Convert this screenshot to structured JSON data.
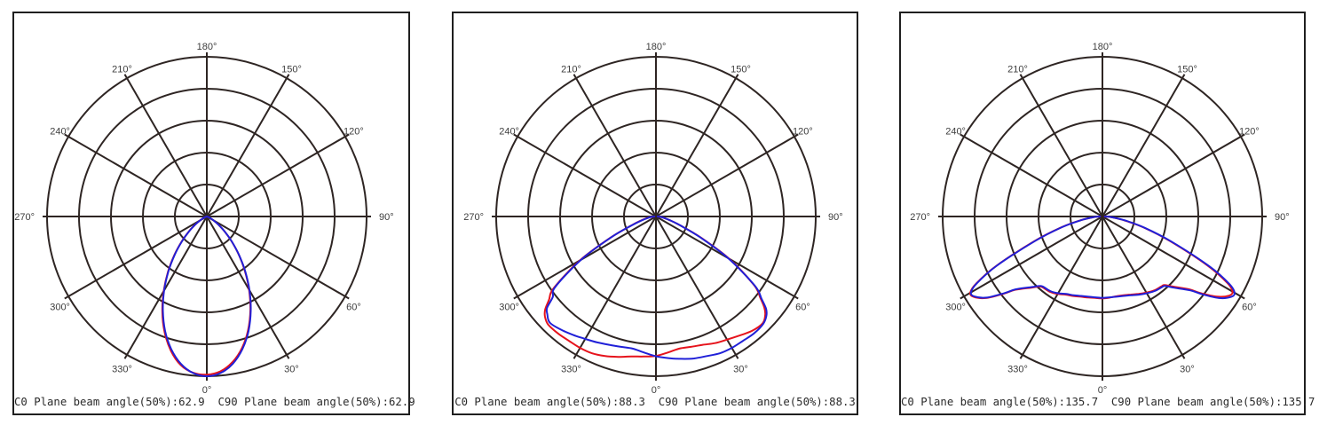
{
  "page": {
    "background_color": "#ffffff"
  },
  "polar_grid": {
    "rings": 5,
    "spoke_step_deg": 30,
    "grid_color": "#2e2523",
    "label_color": "#3d3d3d",
    "angle_labels": [
      "0°",
      "30°",
      "60°",
      "90°",
      "120°",
      "150°",
      "180°",
      "210°",
      "240°",
      "270°",
      "300°",
      "330°"
    ]
  },
  "chart_data": [
    {
      "type": "polar-line",
      "caption": "C0 Plane beam angle(50%):62.9  C90 Plane beam angle(50%):62.9",
      "beam_angle_50_c0": 62.9,
      "beam_angle_50_c90": 62.9,
      "angle_labels": [
        "0°",
        "30°",
        "60°",
        "90°",
        "120°",
        "150°",
        "180°",
        "210°",
        "240°",
        "270°",
        "300°",
        "330°"
      ],
      "radial_axis": {
        "rings": 5,
        "r_max": 1.0,
        "orientation": "0° at bottom, angles increase counterclockwise"
      },
      "series": [
        {
          "name": "C0 Plane",
          "color": "#e6131c",
          "points": [
            [
              -90,
              0
            ],
            [
              -85,
              0.001
            ],
            [
              -80,
              0.002
            ],
            [
              -75,
              0.004
            ],
            [
              -70,
              0.009
            ],
            [
              -65,
              0.023
            ],
            [
              -60,
              0.05
            ],
            [
              -55,
              0.09
            ],
            [
              -50,
              0.148
            ],
            [
              -45,
              0.224
            ],
            [
              -40,
              0.317
            ],
            [
              -35,
              0.424
            ],
            [
              -30,
              0.54
            ],
            [
              -25,
              0.659
            ],
            [
              -20,
              0.772
            ],
            [
              -15,
              0.87
            ],
            [
              -10,
              0.944
            ],
            [
              -5,
              0.982
            ],
            [
              0,
              0.99
            ],
            [
              5,
              0.973
            ],
            [
              10,
              0.926
            ],
            [
              15,
              0.852
            ],
            [
              20,
              0.756
            ],
            [
              25,
              0.645
            ],
            [
              30,
              0.529
            ],
            [
              35,
              0.415
            ],
            [
              40,
              0.31
            ],
            [
              45,
              0.219
            ],
            [
              50,
              0.144
            ],
            [
              55,
              0.088
            ],
            [
              60,
              0.048
            ],
            [
              65,
              0.022
            ],
            [
              70,
              0.009
            ],
            [
              75,
              0.004
            ],
            [
              80,
              0.002
            ],
            [
              85,
              0.001
            ],
            [
              90,
              0
            ]
          ]
        },
        {
          "name": "C90 Plane",
          "color": "#2020d8",
          "points": [
            [
              -90,
              0
            ],
            [
              -85,
              0.001
            ],
            [
              -80,
              0.002
            ],
            [
              -75,
              0.004
            ],
            [
              -70,
              0.009
            ],
            [
              -65,
              0.023
            ],
            [
              -60,
              0.049
            ],
            [
              -55,
              0.089
            ],
            [
              -50,
              0.146
            ],
            [
              -45,
              0.221
            ],
            [
              -40,
              0.313
            ],
            [
              -35,
              0.419
            ],
            [
              -30,
              0.534
            ],
            [
              -25,
              0.651
            ],
            [
              -20,
              0.763
            ],
            [
              -15,
              0.86
            ],
            [
              -10,
              0.936
            ],
            [
              -5,
              0.984
            ],
            [
              0,
              1.0
            ],
            [
              5,
              0.984
            ],
            [
              10,
              0.936
            ],
            [
              15,
              0.86
            ],
            [
              20,
              0.763
            ],
            [
              25,
              0.651
            ],
            [
              30,
              0.534
            ],
            [
              35,
              0.419
            ],
            [
              40,
              0.313
            ],
            [
              45,
              0.221
            ],
            [
              50,
              0.146
            ],
            [
              55,
              0.089
            ],
            [
              60,
              0.049
            ],
            [
              65,
              0.023
            ],
            [
              70,
              0.009
            ],
            [
              75,
              0.004
            ],
            [
              80,
              0.002
            ],
            [
              85,
              0.001
            ],
            [
              90,
              0
            ]
          ]
        }
      ]
    },
    {
      "type": "polar-line",
      "caption": "C0 Plane beam angle(50%):88.3  C90 Plane beam angle(50%):88.3",
      "beam_angle_50_c0": 88.3,
      "beam_angle_50_c90": 88.3,
      "angle_labels": [
        "0°",
        "30°",
        "60°",
        "90°",
        "120°",
        "150°",
        "180°",
        "210°",
        "240°",
        "270°",
        "300°",
        "330°"
      ],
      "radial_axis": {
        "rings": 5,
        "r_max": 1.0,
        "orientation": "0° at bottom, angles increase counterclockwise"
      },
      "series": [
        {
          "name": "C0 Plane",
          "color": "#e6131c",
          "points": [
            [
              -90,
              0.01
            ],
            [
              -85,
              0.03
            ],
            [
              -80,
              0.055
            ],
            [
              -75,
              0.095
            ],
            [
              -70,
              0.165
            ],
            [
              -65,
              0.315
            ],
            [
              -60,
              0.55
            ],
            [
              -55,
              0.78
            ],
            [
              -52,
              0.85
            ],
            [
              -50,
              0.905
            ],
            [
              -48,
              0.935
            ],
            [
              -45,
              0.955
            ],
            [
              -40,
              0.955
            ],
            [
              -35,
              0.95
            ],
            [
              -30,
              0.95
            ],
            [
              -25,
              0.945
            ],
            [
              -20,
              0.93
            ],
            [
              -15,
              0.91
            ],
            [
              -10,
              0.89
            ],
            [
              -5,
              0.88
            ],
            [
              0,
              0.873
            ],
            [
              5,
              0.855
            ],
            [
              10,
              0.84
            ],
            [
              15,
              0.845
            ],
            [
              20,
              0.855
            ],
            [
              25,
              0.875
            ],
            [
              30,
              0.89
            ],
            [
              35,
              0.91
            ],
            [
              40,
              0.935
            ],
            [
              45,
              0.945
            ],
            [
              48,
              0.92
            ],
            [
              50,
              0.885
            ],
            [
              52,
              0.83
            ],
            [
              55,
              0.75
            ],
            [
              60,
              0.53
            ],
            [
              65,
              0.305
            ],
            [
              70,
              0.16
            ],
            [
              75,
              0.09
            ],
            [
              80,
              0.05
            ],
            [
              85,
              0.03
            ],
            [
              90,
              0.01
            ]
          ]
        },
        {
          "name": "C90 Plane",
          "color": "#2020d8",
          "points": [
            [
              -90,
              0.01
            ],
            [
              -85,
              0.03
            ],
            [
              -80,
              0.05
            ],
            [
              -75,
              0.09
            ],
            [
              -70,
              0.16
            ],
            [
              -65,
              0.31
            ],
            [
              -60,
              0.54
            ],
            [
              -55,
              0.77
            ],
            [
              -52,
              0.82
            ],
            [
              -50,
              0.89
            ],
            [
              -48,
              0.915
            ],
            [
              -45,
              0.94
            ],
            [
              -40,
              0.925
            ],
            [
              -35,
              0.905
            ],
            [
              -30,
              0.885
            ],
            [
              -25,
              0.87
            ],
            [
              -20,
              0.855
            ],
            [
              -15,
              0.845
            ],
            [
              -10,
              0.84
            ],
            [
              -5,
              0.855
            ],
            [
              0,
              0.875
            ],
            [
              5,
              0.89
            ],
            [
              10,
              0.905
            ],
            [
              15,
              0.92
            ],
            [
              20,
              0.93
            ],
            [
              25,
              0.945
            ],
            [
              30,
              0.95
            ],
            [
              35,
              0.95
            ],
            [
              40,
              0.955
            ],
            [
              45,
              0.95
            ],
            [
              48,
              0.93
            ],
            [
              50,
              0.9
            ],
            [
              52,
              0.84
            ],
            [
              55,
              0.755
            ],
            [
              60,
              0.52
            ],
            [
              65,
              0.3
            ],
            [
              70,
              0.16
            ],
            [
              75,
              0.09
            ],
            [
              80,
              0.05
            ],
            [
              85,
              0.03
            ],
            [
              90,
              0.01
            ]
          ]
        }
      ]
    },
    {
      "type": "polar-line",
      "caption": "C0 Plane beam angle(50%):135.7  C90 Plane beam angle(50%):135.7",
      "beam_angle_50_c0": 135.7,
      "beam_angle_50_c90": 135.7,
      "angle_labels": [
        "0°",
        "30°",
        "60°",
        "90°",
        "120°",
        "150°",
        "180°",
        "210°",
        "240°",
        "270°",
        "300°",
        "330°"
      ],
      "radial_axis": {
        "rings": 5,
        "r_max": 1.0,
        "orientation": "0° at bottom, angles increase counterclockwise"
      },
      "series": [
        {
          "name": "C0 Plane",
          "color": "#e6131c",
          "points": [
            [
              -90,
              0.015
            ],
            [
              -85,
              0.06
            ],
            [
              -80,
              0.142
            ],
            [
              -75,
              0.272
            ],
            [
              -70,
              0.455
            ],
            [
              -65,
              0.735
            ],
            [
              -62,
              0.895
            ],
            [
              -60,
              0.955
            ],
            [
              -58,
              0.95
            ],
            [
              -55,
              0.89
            ],
            [
              -52,
              0.785
            ],
            [
              -50,
              0.715
            ],
            [
              -45,
              0.63
            ],
            [
              -42,
              0.59
            ],
            [
              -40,
              0.58
            ],
            [
              -35,
              0.575
            ],
            [
              -30,
              0.56
            ],
            [
              -25,
              0.54
            ],
            [
              -20,
              0.53
            ],
            [
              -15,
              0.52
            ],
            [
              -10,
              0.515
            ],
            [
              -5,
              0.512
            ],
            [
              0,
              0.513
            ],
            [
              5,
              0.51
            ],
            [
              10,
              0.507
            ],
            [
              15,
              0.51
            ],
            [
              20,
              0.52
            ],
            [
              25,
              0.535
            ],
            [
              30,
              0.55
            ],
            [
              35,
              0.565
            ],
            [
              40,
              0.572
            ],
            [
              42,
              0.578
            ],
            [
              45,
              0.62
            ],
            [
              50,
              0.71
            ],
            [
              52,
              0.78
            ],
            [
              55,
              0.875
            ],
            [
              58,
              0.935
            ],
            [
              60,
              0.94
            ],
            [
              62,
              0.885
            ],
            [
              65,
              0.725
            ],
            [
              70,
              0.45
            ],
            [
              75,
              0.27
            ],
            [
              80,
              0.14
            ],
            [
              85,
              0.058
            ],
            [
              90,
              0.014
            ]
          ]
        },
        {
          "name": "C90 Plane",
          "color": "#2020d8",
          "points": [
            [
              -90,
              0.015
            ],
            [
              -85,
              0.06
            ],
            [
              -80,
              0.14
            ],
            [
              -75,
              0.27
            ],
            [
              -70,
              0.45
            ],
            [
              -65,
              0.73
            ],
            [
              -62,
              0.89
            ],
            [
              -60,
              0.95
            ],
            [
              -58,
              0.945
            ],
            [
              -55,
              0.885
            ],
            [
              -52,
              0.78
            ],
            [
              -50,
              0.71
            ],
            [
              -45,
              0.625
            ],
            [
              -42,
              0.585
            ],
            [
              -40,
              0.575
            ],
            [
              -35,
              0.57
            ],
            [
              -30,
              0.555
            ],
            [
              -25,
              0.535
            ],
            [
              -20,
              0.525
            ],
            [
              -15,
              0.515
            ],
            [
              -10,
              0.51
            ],
            [
              -5,
              0.508
            ],
            [
              0,
              0.51
            ],
            [
              5,
              0.508
            ],
            [
              10,
              0.51
            ],
            [
              15,
              0.515
            ],
            [
              20,
              0.525
            ],
            [
              25,
              0.54
            ],
            [
              30,
              0.555
            ],
            [
              35,
              0.57
            ],
            [
              40,
              0.578
            ],
            [
              42,
              0.585
            ],
            [
              45,
              0.63
            ],
            [
              50,
              0.72
            ],
            [
              52,
              0.79
            ],
            [
              55,
              0.89
            ],
            [
              58,
              0.95
            ],
            [
              60,
              0.955
            ],
            [
              62,
              0.9
            ],
            [
              65,
              0.74
            ],
            [
              70,
              0.46
            ],
            [
              75,
              0.275
            ],
            [
              80,
              0.145
            ],
            [
              85,
              0.06
            ],
            [
              90,
              0.015
            ]
          ]
        }
      ]
    }
  ]
}
